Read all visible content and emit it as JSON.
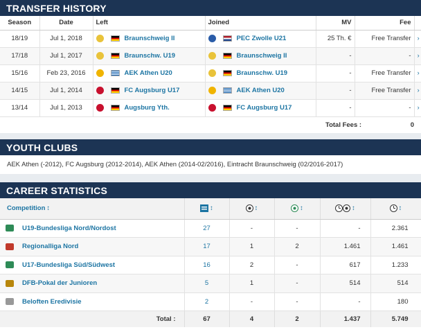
{
  "transfer": {
    "title": "TRANSFER HISTORY",
    "headers": [
      "Season",
      "Date",
      "Left",
      "Joined",
      "MV",
      "Fee"
    ],
    "rows": [
      {
        "season": "18/19",
        "date": "Jul 1, 2018",
        "left": "Braunschweig II",
        "left_flag": "de",
        "left_crest": "#e9c33a",
        "joined": "PEC Zwolle U21",
        "joined_flag": "nl",
        "joined_crest": "#2a5ca8",
        "mv": "25 Th. €",
        "fee": "Free Transfer"
      },
      {
        "season": "17/18",
        "date": "Jul 1, 2017",
        "left": "Braunschw. U19",
        "left_flag": "de",
        "left_crest": "#e9c33a",
        "joined": "Braunschweig II",
        "joined_flag": "de",
        "joined_crest": "#e9c33a",
        "mv": "-",
        "fee": "-"
      },
      {
        "season": "15/16",
        "date": "Feb 23, 2016",
        "left": "AEK Athen U20",
        "left_flag": "gr",
        "left_crest": "#f0b400",
        "joined": "Braunschw. U19",
        "joined_flag": "de",
        "joined_crest": "#e9c33a",
        "mv": "-",
        "fee": "Free Transfer"
      },
      {
        "season": "14/15",
        "date": "Jul 1, 2014",
        "left": "FC Augsburg U17",
        "left_flag": "de",
        "left_crest": "#c8102e",
        "joined": "AEK Athen U20",
        "joined_flag": "gr",
        "joined_crest": "#f0b400",
        "mv": "-",
        "fee": "Free Transfer"
      },
      {
        "season": "13/14",
        "date": "Jul 1, 2013",
        "left": "Augsburg Yth.",
        "left_flag": "de",
        "left_crest": "#c8102e",
        "joined": "FC Augsburg U17",
        "joined_flag": "de",
        "joined_crest": "#c8102e",
        "mv": "-",
        "fee": "-"
      }
    ],
    "total_label": "Total Fees :",
    "total_value": "0",
    "row_arrow": "›"
  },
  "youth": {
    "title": "YOUTH CLUBS",
    "text": "AEK Athen (-2012), FC Augsburg (2012-2014), AEK Athen (2014-02/2016), Eintracht Braunschweig (02/2016-2017)"
  },
  "career": {
    "title": "CAREER STATISTICS",
    "competition_header": "Competition",
    "column_icons": [
      "appearances-icon",
      "goals-icon",
      "assists-icon",
      "minutes-per-goal-icon",
      "minutes-icon"
    ],
    "rows": [
      {
        "competition": "U19-Bundesliga Nord/Nordost",
        "logo_color": "#2e8b57",
        "apps": "27",
        "goals": "-",
        "assists": "-",
        "min_per_goal": "-",
        "minutes": "2.361"
      },
      {
        "competition": "Regionalliga Nord",
        "logo_color": "#c0392b",
        "apps": "17",
        "goals": "1",
        "assists": "2",
        "min_per_goal": "1.461",
        "minutes": "1.461"
      },
      {
        "competition": "U17-Bundesliga Süd/Südwest",
        "logo_color": "#2e8b57",
        "apps": "16",
        "goals": "2",
        "assists": "-",
        "min_per_goal": "617",
        "minutes": "1.233"
      },
      {
        "competition": "DFB-Pokal der Junioren",
        "logo_color": "#b8860b",
        "apps": "5",
        "goals": "1",
        "assists": "-",
        "min_per_goal": "514",
        "minutes": "514"
      },
      {
        "competition": "Beloften Eredivisie",
        "logo_color": "#999999",
        "apps": "2",
        "goals": "-",
        "assists": "-",
        "min_per_goal": "-",
        "minutes": "180"
      }
    ],
    "total": {
      "label": "Total :",
      "apps": "67",
      "goals": "4",
      "assists": "2",
      "min_per_goal": "1.437",
      "minutes": "5.749"
    },
    "sort_glyph": "↕"
  }
}
